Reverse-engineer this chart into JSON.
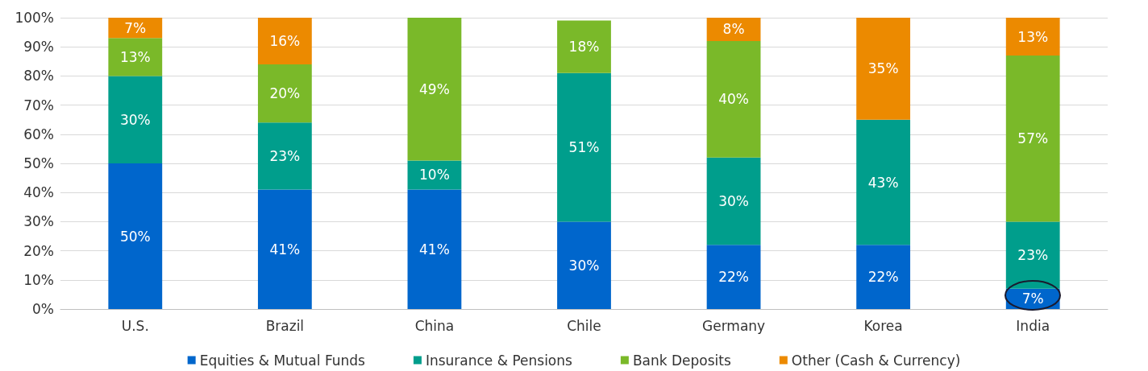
{
  "chart_data": {
    "type": "bar",
    "stacked": true,
    "categories": [
      "U.S.",
      "Brazil",
      "China",
      "Chile",
      "Germany",
      "Korea",
      "India"
    ],
    "series": [
      {
        "name": "Equities & Mutual Funds",
        "color": "#0066cc",
        "values": [
          50,
          41,
          41,
          30,
          22,
          22,
          7
        ],
        "value_labels": [
          "50%",
          "41%",
          "41%",
          "30%",
          "22%",
          "22%",
          "7%"
        ]
      },
      {
        "name": "Insurance & Pensions",
        "color": "#009e8c",
        "values": [
          30,
          23,
          10,
          51,
          30,
          43,
          23
        ],
        "value_labels": [
          "30%",
          "23%",
          "10%",
          "51%",
          "30%",
          "43%",
          "23%"
        ]
      },
      {
        "name": "Bank Deposits",
        "color": "#7ab929",
        "values": [
          13,
          20,
          49,
          18,
          40,
          null,
          57
        ],
        "value_labels": [
          "13%",
          "20%",
          "49%",
          "18%",
          "40%",
          null,
          "57%"
        ]
      },
      {
        "name": "Other (Cash & Currency)",
        "color": "#ec8a00",
        "values": [
          7,
          16,
          null,
          null,
          8,
          35,
          13
        ],
        "value_labels": [
          "7%",
          "16%",
          null,
          null,
          "8%",
          "35%",
          "13%"
        ]
      }
    ],
    "ylim": [
      0,
      100
    ],
    "yticks": [
      {
        "value": 0,
        "label": "0%"
      },
      {
        "value": 10,
        "label": "10%"
      },
      {
        "value": 20,
        "label": "20%"
      },
      {
        "value": 30,
        "label": "30%"
      },
      {
        "value": 40,
        "label": "40%"
      },
      {
        "value": 50,
        "label": "50%"
      },
      {
        "value": 60,
        "label": "60%"
      },
      {
        "value": 70,
        "label": "70%"
      },
      {
        "value": 80,
        "label": "80%"
      },
      {
        "value": 90,
        "label": "90%"
      },
      {
        "value": 100,
        "label": "100%"
      }
    ],
    "grid": "y",
    "legend": "bottom"
  }
}
